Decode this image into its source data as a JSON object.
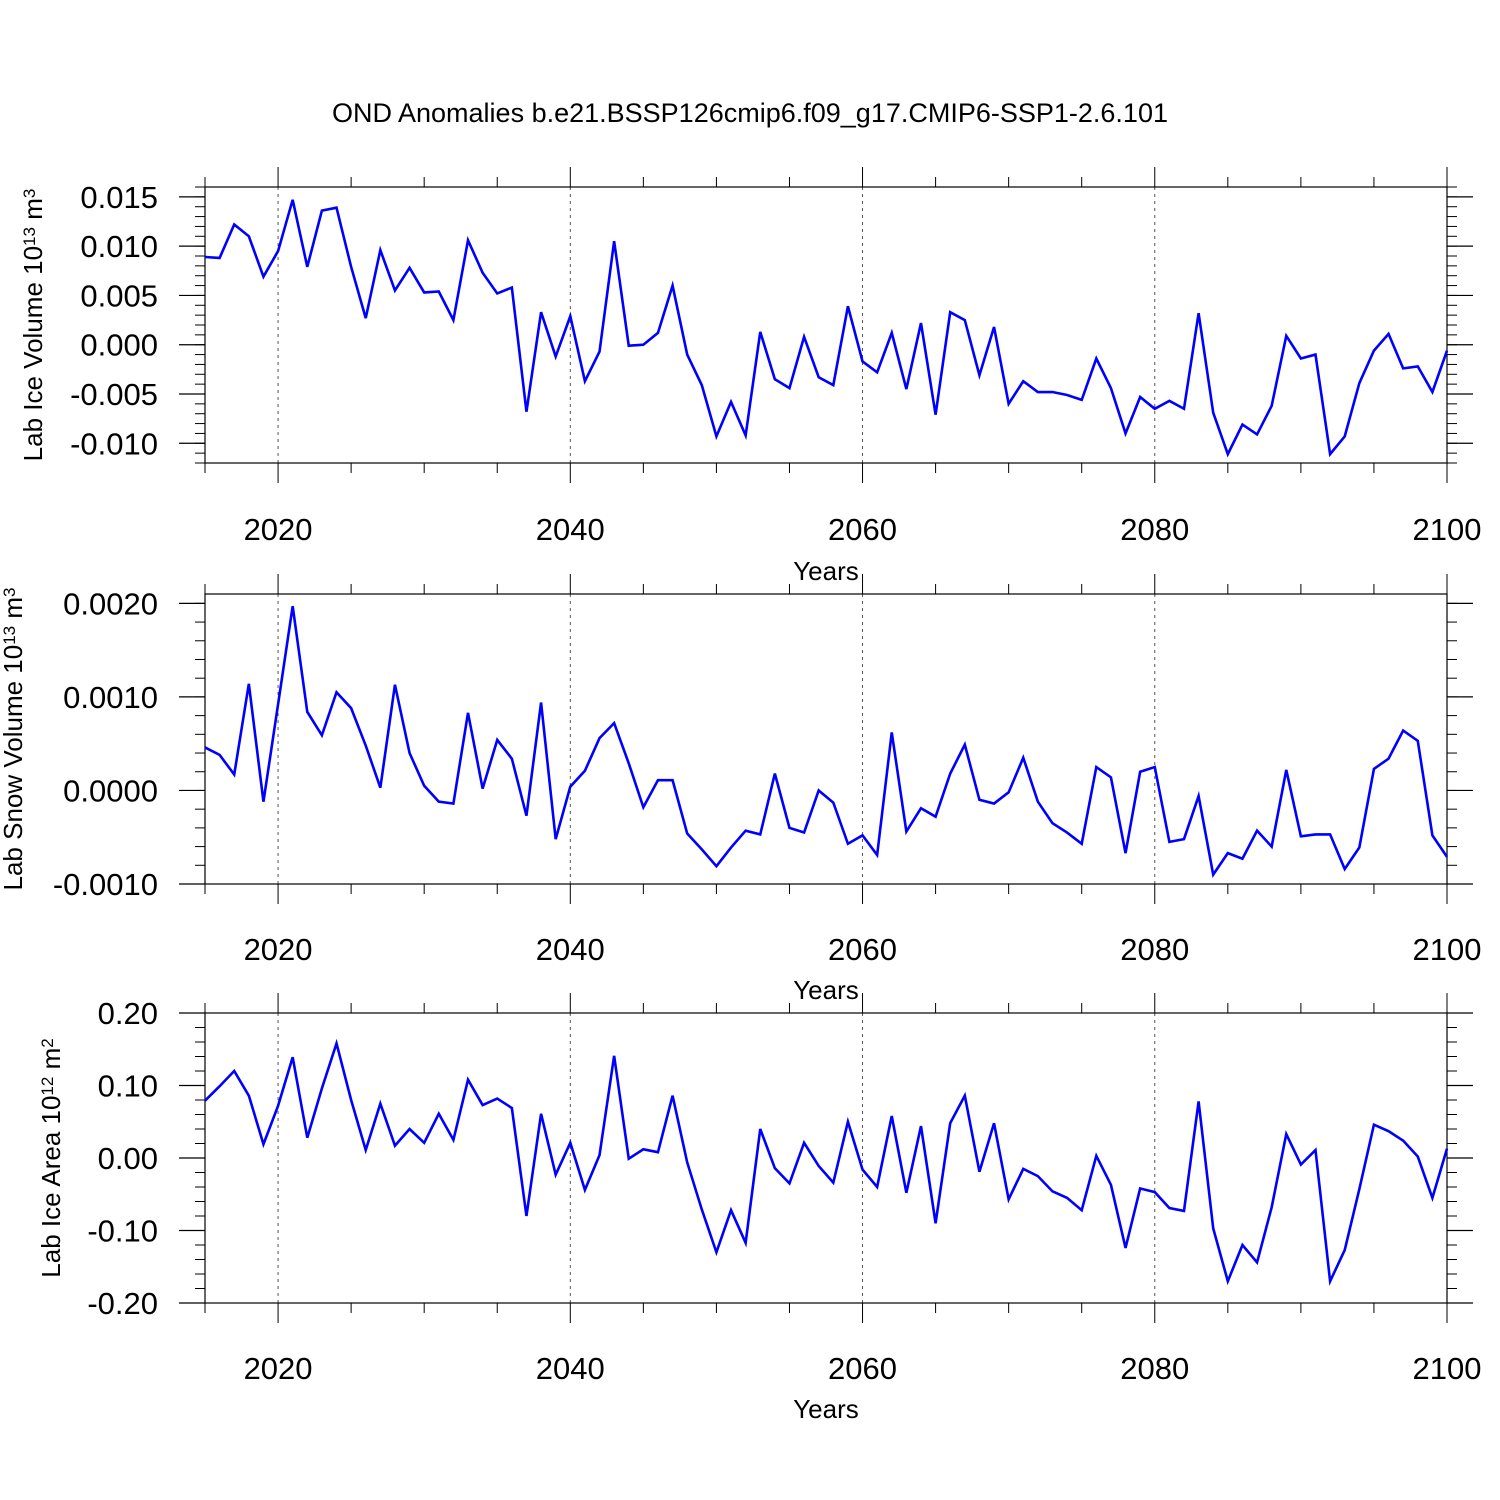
{
  "title": "OND Anomalies b.e21.BSSP126cmip6.f09_g17.CMIP6-SSP1-2.6.101",
  "colors": {
    "line": "#0000ff",
    "axis": "#000000",
    "grid": "#555555",
    "background": "#ffffff"
  },
  "chart_data": [
    {
      "type": "line",
      "title": "OND Anomalies b.e21.BSSP126cmip6.f09_g17.CMIP6-SSP1-2.6.101",
      "xlabel": "Years",
      "ylabel": "Lab Ice Volume 10",
      "ylabel_sup": "13",
      "ylabel_unit": " m",
      "ylabel_unit_sup": "3",
      "xlim": [
        2015,
        2100
      ],
      "ylim": [
        -0.012,
        0.016
      ],
      "xticks": [
        "2020",
        "2040",
        "2060",
        "2080",
        "2100"
      ],
      "yticks": [
        {
          "value": 0.015,
          "label": "0.015"
        },
        {
          "value": 0.01,
          "label": "0.010"
        },
        {
          "value": 0.005,
          "label": "0.005"
        },
        {
          "value": 0.0,
          "label": "0.000"
        },
        {
          "value": -0.005,
          "label": "-0.005"
        },
        {
          "value": -0.01,
          "label": "-0.010"
        }
      ],
      "grid": "vertical dashed at major x ticks",
      "x": [
        2015,
        2016,
        2017,
        2018,
        2019,
        2020,
        2021,
        2022,
        2023,
        2024,
        2025,
        2026,
        2027,
        2028,
        2029,
        2030,
        2031,
        2032,
        2033,
        2034,
        2035,
        2036,
        2037,
        2038,
        2039,
        2040,
        2041,
        2042,
        2043,
        2044,
        2045,
        2046,
        2047,
        2048,
        2049,
        2050,
        2051,
        2052,
        2053,
        2054,
        2055,
        2056,
        2057,
        2058,
        2059,
        2060,
        2061,
        2062,
        2063,
        2064,
        2065,
        2066,
        2067,
        2068,
        2069,
        2070,
        2071,
        2072,
        2073,
        2074,
        2075,
        2076,
        2077,
        2078,
        2079,
        2080,
        2081,
        2082,
        2083,
        2084,
        2085,
        2086,
        2087,
        2088,
        2089,
        2090,
        2091,
        2092,
        2093,
        2094,
        2095,
        2096,
        2097,
        2098,
        2099,
        2100
      ],
      "series": [
        {
          "values": [
            0.0089,
            0.0088,
            0.0122,
            0.011,
            0.0069,
            0.0095,
            0.0147,
            0.0079,
            0.0136,
            0.0139,
            0.0079,
            0.0027,
            0.0096,
            0.0055,
            0.0078,
            0.0053,
            0.0054,
            0.0025,
            0.0106,
            0.0073,
            0.0052,
            0.0058,
            -0.0068,
            0.0033,
            -0.0012,
            0.0029,
            -0.0037,
            -0.0007,
            0.0105,
            -0.0001,
            0.0,
            0.0012,
            0.006,
            -0.001,
            -0.0041,
            -0.0093,
            -0.0058,
            -0.0092,
            0.0013,
            -0.0035,
            -0.0044,
            0.0008,
            -0.0033,
            -0.0041,
            0.0039,
            -0.0017,
            -0.0028,
            0.0012,
            -0.0045,
            0.0022,
            -0.0071,
            0.0033,
            0.0025,
            -0.0031,
            0.0018,
            -0.006,
            -0.0037,
            -0.0048,
            -0.0048,
            -0.0051,
            -0.0056,
            -0.0014,
            -0.0044,
            -0.009,
            -0.0053,
            -0.0065,
            -0.0057,
            -0.0065,
            0.0032,
            -0.0069,
            -0.0111,
            -0.0081,
            -0.0091,
            -0.0062,
            0.0009,
            -0.0014,
            -0.001,
            -0.0111,
            -0.0093,
            -0.0039,
            -0.0006,
            0.0011,
            -0.0024,
            -0.0022,
            -0.0048,
            -0.0006
          ]
        }
      ]
    },
    {
      "type": "line",
      "xlabel": "Years",
      "ylabel": "Lab Snow Volume 10",
      "ylabel_sup": "13",
      "ylabel_unit": " m",
      "ylabel_unit_sup": "3",
      "xlim": [
        2015,
        2100
      ],
      "ylim": [
        -0.001,
        0.0021
      ],
      "xticks": [
        "2020",
        "2040",
        "2060",
        "2080",
        "2100"
      ],
      "yticks": [
        {
          "value": 0.002,
          "label": "0.0020"
        },
        {
          "value": 0.001,
          "label": "0.0010"
        },
        {
          "value": 0.0,
          "label": "0.0000"
        },
        {
          "value": -0.001,
          "label": "-0.0010"
        }
      ],
      "grid": "vertical dashed at major x ticks",
      "x": [
        2015,
        2016,
        2017,
        2018,
        2019,
        2020,
        2021,
        2022,
        2023,
        2024,
        2025,
        2026,
        2027,
        2028,
        2029,
        2030,
        2031,
        2032,
        2033,
        2034,
        2035,
        2036,
        2037,
        2038,
        2039,
        2040,
        2041,
        2042,
        2043,
        2044,
        2045,
        2046,
        2047,
        2048,
        2049,
        2050,
        2051,
        2052,
        2053,
        2054,
        2055,
        2056,
        2057,
        2058,
        2059,
        2060,
        2061,
        2062,
        2063,
        2064,
        2065,
        2066,
        2067,
        2068,
        2069,
        2070,
        2071,
        2072,
        2073,
        2074,
        2075,
        2076,
        2077,
        2078,
        2079,
        2080,
        2081,
        2082,
        2083,
        2084,
        2085,
        2086,
        2087,
        2088,
        2089,
        2090,
        2091,
        2092,
        2093,
        2094,
        2095,
        2096,
        2097,
        2098,
        2099,
        2100
      ],
      "series": [
        {
          "values": [
            0.00046,
            0.00038,
            0.00017,
            0.00114,
            -0.00012,
            0.00092,
            0.00197,
            0.00084,
            0.00059,
            0.00105,
            0.00088,
            0.00048,
            3e-05,
            0.00113,
            0.0004,
            5e-05,
            -0.00012,
            -0.00014,
            0.00083,
            2e-05,
            0.00054,
            0.00034,
            -0.00027,
            0.00094,
            -0.00052,
            4e-05,
            0.00021,
            0.00056,
            0.00072,
            0.00029,
            -0.00018,
            0.00011,
            0.00011,
            -0.00046,
            -0.00063,
            -0.00081,
            -0.00061,
            -0.00043,
            -0.00047,
            0.00018,
            -0.0004,
            -0.00045,
            0.0,
            -0.00013,
            -0.00057,
            -0.00048,
            -0.00069,
            0.00062,
            -0.00044,
            -0.00019,
            -0.00028,
            0.00018,
            0.00049,
            -0.0001,
            -0.00014,
            -2e-05,
            0.00035,
            -0.00012,
            -0.00035,
            -0.00045,
            -0.00057,
            0.00025,
            0.00014,
            -0.00067,
            0.0002,
            0.00025,
            -0.00055,
            -0.00052,
            -6e-05,
            -0.0009,
            -0.00067,
            -0.00073,
            -0.00043,
            -0.0006,
            0.00022,
            -0.00049,
            -0.00047,
            -0.00047,
            -0.00084,
            -0.00061,
            0.00023,
            0.00034,
            0.00064,
            0.00053,
            -0.00048,
            -0.00071
          ]
        }
      ]
    },
    {
      "type": "line",
      "xlabel": "Years",
      "ylabel": "Lab Ice Area 10",
      "ylabel_sup": "12",
      "ylabel_unit": " m",
      "ylabel_unit_sup": "2",
      "xlim": [
        2015,
        2100
      ],
      "ylim": [
        -0.2,
        0.2
      ],
      "xticks": [
        "2020",
        "2040",
        "2060",
        "2080",
        "2100"
      ],
      "yticks": [
        {
          "value": 0.2,
          "label": "0.20"
        },
        {
          "value": 0.1,
          "label": "0.10"
        },
        {
          "value": 0.0,
          "label": "0.00"
        },
        {
          "value": -0.1,
          "label": "-0.10"
        },
        {
          "value": -0.2,
          "label": "-0.20"
        }
      ],
      "grid": "vertical dashed at major x ticks",
      "x": [
        2015,
        2016,
        2017,
        2018,
        2019,
        2020,
        2021,
        2022,
        2023,
        2024,
        2025,
        2026,
        2027,
        2028,
        2029,
        2030,
        2031,
        2032,
        2033,
        2034,
        2035,
        2036,
        2037,
        2038,
        2039,
        2040,
        2041,
        2042,
        2043,
        2044,
        2045,
        2046,
        2047,
        2048,
        2049,
        2050,
        2051,
        2052,
        2053,
        2054,
        2055,
        2056,
        2057,
        2058,
        2059,
        2060,
        2061,
        2062,
        2063,
        2064,
        2065,
        2066,
        2067,
        2068,
        2069,
        2070,
        2071,
        2072,
        2073,
        2074,
        2075,
        2076,
        2077,
        2078,
        2079,
        2080,
        2081,
        2082,
        2083,
        2084,
        2085,
        2086,
        2087,
        2088,
        2089,
        2090,
        2091,
        2092,
        2093,
        2094,
        2095,
        2096,
        2097,
        2098,
        2099,
        2100
      ],
      "series": [
        {
          "values": [
            0.079,
            0.099,
            0.12,
            0.086,
            0.019,
            0.072,
            0.139,
            0.028,
            0.096,
            0.158,
            0.08,
            0.011,
            0.075,
            0.017,
            0.04,
            0.021,
            0.061,
            0.025,
            0.108,
            0.073,
            0.082,
            0.069,
            -0.08,
            0.061,
            -0.023,
            0.021,
            -0.044,
            0.004,
            0.141,
            -0.001,
            0.012,
            0.008,
            0.086,
            -0.006,
            -0.071,
            -0.13,
            -0.072,
            -0.117,
            0.04,
            -0.014,
            -0.035,
            0.021,
            -0.011,
            -0.034,
            0.05,
            -0.016,
            -0.04,
            0.058,
            -0.048,
            0.044,
            -0.09,
            0.048,
            0.086,
            -0.019,
            0.048,
            -0.057,
            -0.015,
            -0.025,
            -0.046,
            -0.055,
            -0.072,
            0.003,
            -0.037,
            -0.124,
            -0.042,
            -0.047,
            -0.069,
            -0.073,
            0.078,
            -0.097,
            -0.17,
            -0.12,
            -0.144,
            -0.068,
            0.033,
            -0.009,
            0.011,
            -0.17,
            -0.127,
            -0.043,
            0.046,
            0.037,
            0.024,
            0.002,
            -0.055,
            0.013
          ]
        }
      ]
    }
  ]
}
